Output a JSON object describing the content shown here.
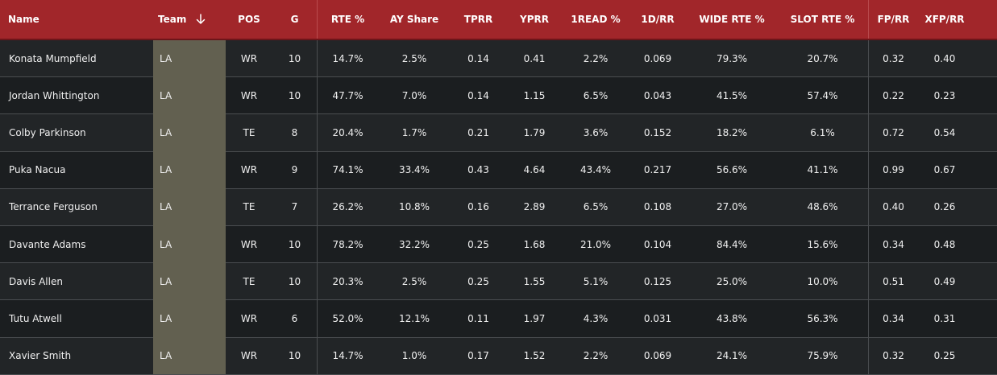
{
  "table": {
    "columns": [
      {
        "key": "name",
        "label": "Name"
      },
      {
        "key": "team",
        "label": "Team"
      },
      {
        "key": "pos",
        "label": "POS"
      },
      {
        "key": "g",
        "label": "G"
      },
      {
        "key": "rte",
        "label": "RTE %"
      },
      {
        "key": "ay_share",
        "label": "AY Share"
      },
      {
        "key": "tprr",
        "label": "TPRR"
      },
      {
        "key": "yprr",
        "label": "YPRR"
      },
      {
        "key": "read1",
        "label": "1READ %"
      },
      {
        "key": "d1rr",
        "label": "1D/RR"
      },
      {
        "key": "wide_rte",
        "label": "WIDE RTE %"
      },
      {
        "key": "slot_rte",
        "label": "SLOT RTE %"
      },
      {
        "key": "fprr",
        "label": "FP/RR"
      },
      {
        "key": "xfprr",
        "label": "XFP/RR"
      }
    ],
    "sort_icon": "arrow-down-icon",
    "rows": [
      [
        "Konata Mumpfield",
        "LA",
        "WR",
        "10",
        "14.7%",
        "2.5%",
        "0.14",
        "0.41",
        "2.2%",
        "0.069",
        "79.3%",
        "20.7%",
        "0.32",
        "0.40"
      ],
      [
        "Jordan Whittington",
        "LA",
        "WR",
        "10",
        "47.7%",
        "7.0%",
        "0.14",
        "1.15",
        "6.5%",
        "0.043",
        "41.5%",
        "57.4%",
        "0.22",
        "0.23"
      ],
      [
        "Colby Parkinson",
        "LA",
        "TE",
        "8",
        "20.4%",
        "1.7%",
        "0.21",
        "1.79",
        "3.6%",
        "0.152",
        "18.2%",
        "6.1%",
        "0.72",
        "0.54"
      ],
      [
        "Puka Nacua",
        "LA",
        "WR",
        "9",
        "74.1%",
        "33.4%",
        "0.43",
        "4.64",
        "43.4%",
        "0.217",
        "56.6%",
        "41.1%",
        "0.99",
        "0.67"
      ],
      [
        "Terrance Ferguson",
        "LA",
        "TE",
        "7",
        "26.2%",
        "10.8%",
        "0.16",
        "2.89",
        "6.5%",
        "0.108",
        "27.0%",
        "48.6%",
        "0.40",
        "0.26"
      ],
      [
        "Davante Adams",
        "LA",
        "WR",
        "10",
        "78.2%",
        "32.2%",
        "0.25",
        "1.68",
        "21.0%",
        "0.104",
        "84.4%",
        "15.6%",
        "0.34",
        "0.48"
      ],
      [
        "Davis Allen",
        "LA",
        "TE",
        "10",
        "20.3%",
        "2.5%",
        "0.25",
        "1.55",
        "5.1%",
        "0.125",
        "25.0%",
        "10.0%",
        "0.51",
        "0.49"
      ],
      [
        "Tutu Atwell",
        "LA",
        "WR",
        "6",
        "52.0%",
        "12.1%",
        "0.11",
        "1.97",
        "4.3%",
        "0.031",
        "43.8%",
        "56.3%",
        "0.34",
        "0.31"
      ],
      [
        "Xavier Smith",
        "LA",
        "WR",
        "10",
        "14.7%",
        "1.0%",
        "0.17",
        "1.52",
        "2.2%",
        "0.069",
        "24.1%",
        "75.9%",
        "0.32",
        "0.25"
      ]
    ]
  },
  "colors": {
    "header_bg": "#a1262a",
    "team_cell_bg": "#626050",
    "row_odd": "#222527",
    "row_even": "#1b1e20"
  }
}
